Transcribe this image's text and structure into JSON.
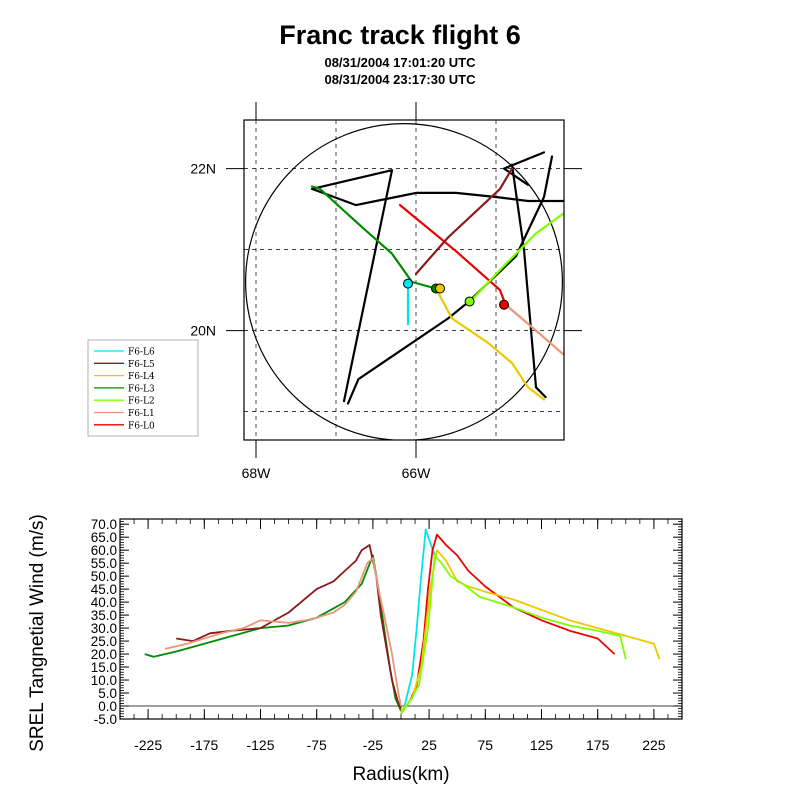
{
  "title": "Franc track flight 6",
  "subtitle_lines": [
    "08/31/2004 17:01:20 UTC",
    "08/31/2004 23:17:30 UTC"
  ],
  "chart_data": [
    {
      "type": "map",
      "lon_ticks": [
        {
          "value": -68,
          "label": "68W"
        },
        {
          "value": -66,
          "label": "66W"
        }
      ],
      "lat_ticks": [
        {
          "value": 22,
          "label": "22N"
        },
        {
          "value": 20,
          "label": "20N"
        }
      ],
      "lon_range": [
        -68.15,
        -64.15
      ],
      "lat_range": [
        18.65,
        22.6
      ],
      "grid_lon": [
        -68,
        -67,
        -66,
        -65
      ],
      "grid_lat": [
        19,
        20,
        21,
        22
      ],
      "circle": {
        "center": [
          -66.15,
          20.6
        ],
        "radius_deg": 1.98
      },
      "legend": {
        "placement": "left",
        "entries": [
          {
            "label": "F6-L6",
            "color": "#00e5ee"
          },
          {
            "label": "F6-L5",
            "color": "#8b1a1a"
          },
          {
            "label": "F6-L4",
            "color": "#eec900"
          },
          {
            "label": "F6-L3",
            "color": "#008b00"
          },
          {
            "label": "F6-L2",
            "color": "#7fff00"
          },
          {
            "label": "F6-L1",
            "color": "#e9967a"
          },
          {
            "label": "F6-L0",
            "color": "#ee0000"
          }
        ]
      },
      "tracks": [
        {
          "color": "#000000",
          "points": [
            [
              -66.9,
              19.13
            ],
            [
              -66.3,
              21.98
            ],
            [
              -67.3,
              21.75
            ],
            [
              -66.75,
              21.55
            ],
            [
              -66.5,
              21.6
            ],
            [
              -66.25,
              21.65
            ],
            [
              -66.0,
              21.7
            ],
            [
              -65.5,
              21.7
            ],
            [
              -65.0,
              21.65
            ],
            [
              -64.6,
              21.6
            ],
            [
              -64.15,
              21.6
            ]
          ]
        },
        {
          "color": "#000000",
          "points": [
            [
              -66.85,
              19.1
            ],
            [
              -66.72,
              19.4
            ],
            [
              -65.6,
              20.15
            ],
            [
              -65.35,
              20.35
            ],
            [
              -64.75,
              20.92
            ],
            [
              -64.4,
              21.65
            ],
            [
              -64.3,
              22.15
            ]
          ]
        },
        {
          "color": "#000000",
          "points": [
            [
              -64.6,
              21.8
            ],
            [
              -64.9,
              22.0
            ],
            [
              -64.4,
              22.2
            ]
          ]
        },
        {
          "color": "#000000",
          "points": [
            [
              -64.8,
              22.05
            ],
            [
              -64.65,
              21.0
            ],
            [
              -64.5,
              19.3
            ],
            [
              -64.38,
              19.18
            ]
          ]
        },
        {
          "color": "#008b00",
          "points": [
            [
              -67.3,
              21.78
            ],
            [
              -67.2,
              21.75
            ],
            [
              -66.7,
              21.3
            ],
            [
              -66.3,
              20.95
            ],
            [
              -66.05,
              20.6
            ],
            [
              -65.75,
              20.52
            ]
          ]
        },
        {
          "color": "#ee0000",
          "points": [
            [
              -66.2,
              21.55
            ],
            [
              -65.5,
              20.98
            ],
            [
              -64.95,
              20.5
            ],
            [
              -64.88,
              20.32
            ]
          ]
        },
        {
          "color": "#e9967a",
          "points": [
            [
              -64.88,
              20.32
            ],
            [
              -64.5,
              20.0
            ],
            [
              -64.15,
              19.7
            ]
          ]
        },
        {
          "color": "#8b1a1a",
          "points": [
            [
              -66.0,
              20.7
            ],
            [
              -65.6,
              21.15
            ],
            [
              -64.95,
              21.75
            ],
            [
              -64.8,
              22.0
            ]
          ]
        },
        {
          "color": "#7fff00",
          "points": [
            [
              -65.3,
              20.38
            ],
            [
              -64.9,
              20.8
            ],
            [
              -64.5,
              21.2
            ],
            [
              -64.15,
              21.45
            ]
          ]
        },
        {
          "color": "#eec900",
          "points": [
            [
              -65.75,
              20.52
            ],
            [
              -65.55,
              20.15
            ],
            [
              -65.1,
              19.85
            ],
            [
              -64.8,
              19.6
            ],
            [
              -64.6,
              19.3
            ],
            [
              -64.4,
              19.15
            ]
          ]
        },
        {
          "color": "#00e5ee",
          "points": [
            [
              -66.1,
              20.58
            ],
            [
              -66.1,
              20.08
            ]
          ]
        }
      ],
      "markers": [
        {
          "lon": -66.1,
          "lat": 20.58,
          "color": "#00e5ee"
        },
        {
          "lon": -65.75,
          "lat": 20.52,
          "color": "#008b00"
        },
        {
          "lon": -65.7,
          "lat": 20.52,
          "color": "#eec900"
        },
        {
          "lon": -65.33,
          "lat": 20.36,
          "color": "#7fff00"
        },
        {
          "lon": -64.9,
          "lat": 20.32,
          "color": "#ee0000"
        }
      ]
    },
    {
      "type": "line",
      "xlabel": "Radius(km)",
      "ylabel": "SREL Tangnetial Wind (m/s)",
      "xlim": [
        -250,
        250
      ],
      "ylim": [
        -5,
        72
      ],
      "xticks": [
        -225,
        -175,
        -125,
        -75,
        -25,
        25,
        75,
        125,
        175,
        225
      ],
      "yticks": [
        -5.0,
        0.0,
        5.0,
        10.0,
        15.0,
        20.0,
        25.0,
        30.0,
        35.0,
        40.0,
        45.0,
        50.0,
        55.0,
        60.0,
        65.0,
        70.0
      ],
      "ytick_labels": [
        "-5.0",
        "0.0",
        "5.0",
        "10.0",
        "15.0",
        "20.0",
        "25.0",
        "30.0",
        "35.0",
        "40.0",
        "45.0",
        "50.0",
        "55.0",
        "60.0",
        "65.0",
        "70.0"
      ],
      "reference_line_y": 0,
      "series": [
        {
          "color": "#008b00",
          "x": [
            -228,
            -220,
            -200,
            -175,
            -150,
            -125,
            -100,
            -75,
            -50,
            -35,
            -25,
            -20,
            -15,
            -10,
            -5,
            0
          ],
          "y": [
            20,
            19,
            21,
            24,
            27,
            30,
            31,
            34,
            40,
            47,
            58,
            45,
            30,
            15,
            3,
            -2
          ]
        },
        {
          "color": "#8b1a1a",
          "x": [
            -200,
            -185,
            -170,
            -150,
            -125,
            -100,
            -75,
            -60,
            -50,
            -40,
            -35,
            -28,
            -22,
            -18,
            -12,
            -8,
            -3,
            0
          ],
          "y": [
            26,
            25,
            28,
            29,
            30,
            36,
            45,
            48,
            52,
            56,
            60,
            62,
            50,
            35,
            20,
            10,
            2,
            -1
          ]
        },
        {
          "color": "#e9967a",
          "x": [
            -210,
            -190,
            -160,
            -140,
            -125,
            -100,
            -85,
            -75,
            -60,
            -50,
            -40,
            -30,
            -25,
            -20,
            -15,
            -8,
            -2,
            0
          ],
          "y": [
            22,
            24,
            28,
            30,
            33,
            32,
            33,
            34,
            36,
            39,
            44,
            55,
            57,
            45,
            35,
            20,
            4,
            0
          ]
        },
        {
          "color": "#00e5ee",
          "x": [
            2,
            6,
            10,
            14,
            18,
            22,
            26,
            30
          ],
          "y": [
            -2,
            5,
            12,
            30,
            50,
            68,
            63,
            58
          ]
        },
        {
          "color": "#ee0000",
          "x": [
            0,
            8,
            14,
            20,
            24,
            28,
            32,
            40,
            50,
            60,
            75,
            100,
            125,
            150,
            175,
            190
          ],
          "y": [
            -3,
            2,
            8,
            25,
            45,
            60,
            66,
            62,
            58,
            52,
            46,
            38,
            33,
            29,
            26,
            20
          ]
        },
        {
          "color": "#eec900",
          "x": [
            0,
            10,
            18,
            26,
            32,
            40,
            50,
            60,
            75,
            100,
            125,
            150,
            175,
            200,
            225,
            230
          ],
          "y": [
            -2,
            3,
            15,
            45,
            60,
            56,
            48,
            46,
            44,
            41,
            37,
            33,
            30,
            27,
            24,
            18
          ]
        },
        {
          "color": "#7fff00",
          "x": [
            0,
            8,
            16,
            24,
            30,
            36,
            44,
            55,
            70,
            85,
            100,
            125,
            150,
            175,
            195,
            200
          ],
          "y": [
            -3,
            2,
            8,
            30,
            58,
            55,
            50,
            47,
            42,
            40,
            38,
            34,
            31,
            29,
            27,
            18
          ]
        }
      ]
    }
  ]
}
